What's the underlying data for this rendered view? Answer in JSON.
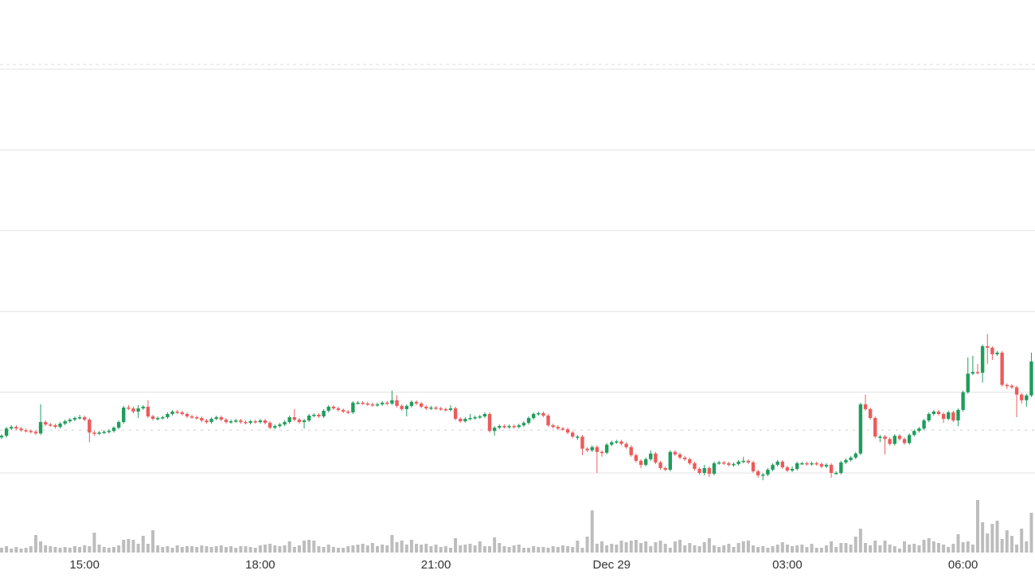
{
  "chart_data": {
    "type": "candlestick",
    "title": "",
    "xlabel": "",
    "ylabel": "",
    "interval": "5m",
    "y_gridlines": [
      0,
      10,
      20,
      30,
      40,
      50
    ],
    "reference_line": 5.3,
    "grid": true,
    "colors": {
      "up": "#1f9d5b",
      "down": "#ec5b5b",
      "volume": "#bdbdbd",
      "grid": "#e3e3e3",
      "reference": "#cfcfcf"
    },
    "x_ticks": [
      {
        "label": "15:00",
        "at_candle": 17
      },
      {
        "label": "18:00",
        "at_candle": 53
      },
      {
        "label": "21:00",
        "at_candle": 89
      },
      {
        "label": "Dec 29",
        "at_candle": 125
      },
      {
        "label": "03:00",
        "at_candle": 161
      },
      {
        "label": "06:00",
        "at_candle": 197
      }
    ],
    "first_open": 4.4,
    "close": [
      4.6,
      5.5,
      5.7,
      5.5,
      5.3,
      5.2,
      5.1,
      4.9,
      6.3,
      6.0,
      5.9,
      5.7,
      6.1,
      6.4,
      6.6,
      6.8,
      6.9,
      6.6,
      5.0,
      4.9,
      5.0,
      5.1,
      5.2,
      5.6,
      6.3,
      8.1,
      8.0,
      7.6,
      8.0,
      8.2,
      7.0,
      6.7,
      6.8,
      6.9,
      7.3,
      7.6,
      7.5,
      7.3,
      7.0,
      6.9,
      6.8,
      6.5,
      6.3,
      6.7,
      6.9,
      6.6,
      6.3,
      6.4,
      6.5,
      6.3,
      6.2,
      6.4,
      6.3,
      6.5,
      6.2,
      5.6,
      5.8,
      6.0,
      6.3,
      6.9,
      6.6,
      6.3,
      6.5,
      7.1,
      7.2,
      7.0,
      7.7,
      8.2,
      8.0,
      7.8,
      7.6,
      7.5,
      8.7,
      8.7,
      8.6,
      8.5,
      8.4,
      8.5,
      8.7,
      8.6,
      9.0,
      8.3,
      7.9,
      8.3,
      8.8,
      8.6,
      8.2,
      8.0,
      8.1,
      8.0,
      7.9,
      7.8,
      8.0,
      6.7,
      6.4,
      6.7,
      6.8,
      6.9,
      7.0,
      7.3,
      5.2,
      5.6,
      5.8,
      5.7,
      5.8,
      5.7,
      5.9,
      6.2,
      6.8,
      7.3,
      7.4,
      7.1,
      5.9,
      5.7,
      5.5,
      5.4,
      5.0,
      4.5,
      4.5,
      3.0,
      2.8,
      3.2,
      2.6,
      2.5,
      3.5,
      3.8,
      3.9,
      3.6,
      3.2,
      2.2,
      1.5,
      1.0,
      1.7,
      2.4,
      1.3,
      0.6,
      0.4,
      2.6,
      2.3,
      1.9,
      1.7,
      1.2,
      0.5,
      0.0,
      0.6,
      -0.1,
      1.2,
      1.3,
      1.2,
      1.0,
      1.1,
      1.4,
      1.5,
      1.3,
      0.2,
      -0.3,
      -0.2,
      0.4,
      1.0,
      1.4,
      0.7,
      0.3,
      0.5,
      1.2,
      1.2,
      1.1,
      1.2,
      1.1,
      0.8,
      1.0,
      0.0,
      0.0,
      1.3,
      1.6,
      1.9,
      2.4,
      8.5,
      7.9,
      6.8,
      4.5,
      4.5,
      4.2,
      3.6,
      4.6,
      4.2,
      3.7,
      4.7,
      5.2,
      5.5,
      6.5,
      7.3,
      7.6,
      7.3,
      6.7,
      7.5,
      6.5,
      7.8,
      10.0,
      12.3,
      12.5,
      12.4,
      15.7,
      15.5,
      14.7,
      14.9,
      10.9,
      10.8,
      10.6,
      9.7,
      9.0,
      9.6,
      13.8
    ],
    "high": [
      4.8,
      5.7,
      5.9,
      5.9,
      5.7,
      5.5,
      5.4,
      5.3,
      8.5,
      6.5,
      6.2,
      6.1,
      6.3,
      6.6,
      6.8,
      7.0,
      7.2,
      7.1,
      6.8,
      5.2,
      5.2,
      5.3,
      5.4,
      5.8,
      6.5,
      8.3,
      8.4,
      8.2,
      8.4,
      8.4,
      9.0,
      7.2,
      7.0,
      7.1,
      7.5,
      7.8,
      7.8,
      7.7,
      7.5,
      7.2,
      7.1,
      7.0,
      6.7,
      6.9,
      7.1,
      7.1,
      6.8,
      6.6,
      6.7,
      6.7,
      6.5,
      6.6,
      6.6,
      6.7,
      6.7,
      6.4,
      6.0,
      6.2,
      6.5,
      7.1,
      7.9,
      6.8,
      6.7,
      7.3,
      7.4,
      7.4,
      7.9,
      8.4,
      8.4,
      8.2,
      8.0,
      7.8,
      8.9,
      8.9,
      8.9,
      8.8,
      8.7,
      8.7,
      8.9,
      8.9,
      10.2,
      9.6,
      8.5,
      8.5,
      9.0,
      9.0,
      8.8,
      8.4,
      8.3,
      8.3,
      8.2,
      8.1,
      8.4,
      8.2,
      6.9,
      6.9,
      7.3,
      7.1,
      7.2,
      7.5,
      7.5,
      5.8,
      6.0,
      6.0,
      6.0,
      6.0,
      6.1,
      6.4,
      7.0,
      7.5,
      7.6,
      7.6,
      7.3,
      6.1,
      5.9,
      5.7,
      5.6,
      5.2,
      4.7,
      4.7,
      3.2,
      3.4,
      3.4,
      2.8,
      3.7,
      4.0,
      4.1,
      4.1,
      3.8,
      3.4,
      2.4,
      1.7,
      1.9,
      2.8,
      2.6,
      1.5,
      0.8,
      2.8,
      2.8,
      2.5,
      2.1,
      1.9,
      1.4,
      0.7,
      1.0,
      0.8,
      1.4,
      1.5,
      1.5,
      1.4,
      1.3,
      1.6,
      2.0,
      1.7,
      1.5,
      0.4,
      0.0,
      0.6,
      1.2,
      1.6,
      1.6,
      0.9,
      0.8,
      1.4,
      1.4,
      1.4,
      1.4,
      1.4,
      1.3,
      1.2,
      1.2,
      0.2,
      1.5,
      1.8,
      2.1,
      2.6,
      8.7,
      9.7,
      8.1,
      7.0,
      4.7,
      4.7,
      4.4,
      4.8,
      4.8,
      4.4,
      4.9,
      5.4,
      5.7,
      6.7,
      7.5,
      7.8,
      7.8,
      7.5,
      7.7,
      7.7,
      8.0,
      10.2,
      14.3,
      14.5,
      13.5,
      15.9,
      17.2,
      15.7,
      15.1,
      15.1,
      11.1,
      11.0,
      10.8,
      9.9,
      9.8,
      14.9
    ],
    "low": [
      4.2,
      4.4,
      5.3,
      5.3,
      5.1,
      5.0,
      4.9,
      4.7,
      4.7,
      5.8,
      5.7,
      5.5,
      5.5,
      5.9,
      6.2,
      6.4,
      6.6,
      6.4,
      3.8,
      4.6,
      4.7,
      4.8,
      4.9,
      5.0,
      5.4,
      6.1,
      7.8,
      7.4,
      6.8,
      7.8,
      6.8,
      6.5,
      6.5,
      6.6,
      6.7,
      7.1,
      7.3,
      7.1,
      6.8,
      6.7,
      6.6,
      6.3,
      6.1,
      6.1,
      6.5,
      6.4,
      6.1,
      6.1,
      6.2,
      6.1,
      6.0,
      6.0,
      6.1,
      6.1,
      6.0,
      5.4,
      5.4,
      5.6,
      5.8,
      6.1,
      6.4,
      6.1,
      5.5,
      6.3,
      6.9,
      6.8,
      6.8,
      7.5,
      7.8,
      7.6,
      7.4,
      7.3,
      7.3,
      8.5,
      8.4,
      8.3,
      8.2,
      8.2,
      8.3,
      8.4,
      8.4,
      8.1,
      7.7,
      7.0,
      8.1,
      8.4,
      8.0,
      7.8,
      7.8,
      7.8,
      7.7,
      7.6,
      7.6,
      6.5,
      6.2,
      6.2,
      6.5,
      6.6,
      6.7,
      6.8,
      5.0,
      4.6,
      5.4,
      5.5,
      5.5,
      5.5,
      5.5,
      5.7,
      6.0,
      6.6,
      7.1,
      6.9,
      5.7,
      5.5,
      5.3,
      5.2,
      4.8,
      4.3,
      4.1,
      2.2,
      2.6,
      2.6,
      0.0,
      2.0,
      2.3,
      3.3,
      3.6,
      3.4,
      3.0,
      2.0,
      1.3,
      0.6,
      0.8,
      1.5,
      1.1,
      0.4,
      0.2,
      0.2,
      2.1,
      1.7,
      1.5,
      1.0,
      0.3,
      -0.2,
      -0.3,
      -0.5,
      -0.3,
      1.0,
      1.0,
      0.8,
      0.8,
      0.9,
      1.2,
      1.1,
      0.0,
      -0.6,
      -0.9,
      -0.4,
      0.2,
      0.8,
      0.5,
      0.1,
      0.1,
      0.3,
      1.0,
      0.9,
      0.9,
      0.9,
      0.6,
      0.6,
      -0.6,
      -0.2,
      -0.2,
      1.1,
      1.4,
      1.7,
      2.2,
      7.7,
      6.6,
      4.3,
      3.8,
      2.3,
      3.4,
      3.4,
      4.0,
      3.5,
      3.5,
      4.5,
      5.0,
      5.3,
      6.3,
      7.1,
      7.1,
      6.2,
      6.5,
      6.3,
      5.8,
      7.6,
      9.8,
      12.1,
      12.2,
      11.2,
      13.5,
      14.0,
      14.5,
      10.7,
      10.4,
      10.4,
      6.9,
      8.6,
      8.2,
      9.4
    ],
    "volume": [
      6,
      8,
      5,
      7,
      5,
      6,
      8,
      22,
      14,
      9,
      8,
      7,
      6,
      7,
      6,
      8,
      7,
      9,
      8,
      25,
      10,
      7,
      6,
      7,
      9,
      16,
      17,
      16,
      11,
      21,
      11,
      28,
      9,
      7,
      8,
      6,
      9,
      7,
      8,
      8,
      7,
      9,
      8,
      7,
      8,
      9,
      7,
      8,
      6,
      8,
      8,
      7,
      6,
      9,
      10,
      11,
      9,
      8,
      9,
      14,
      7,
      9,
      15,
      16,
      15,
      8,
      7,
      10,
      7,
      6,
      6,
      8,
      9,
      10,
      11,
      9,
      12,
      8,
      10,
      9,
      22,
      13,
      15,
      10,
      16,
      11,
      10,
      11,
      8,
      10,
      7,
      8,
      6,
      18,
      9,
      10,
      11,
      9,
      14,
      8,
      8,
      19,
      12,
      8,
      7,
      9,
      10,
      6,
      6,
      8,
      7,
      7,
      6,
      8,
      7,
      9,
      8,
      7,
      15,
      6,
      20,
      53,
      11,
      14,
      9,
      11,
      10,
      15,
      13,
      15,
      16,
      12,
      14,
      8,
      13,
      15,
      11,
      6,
      14,
      16,
      9,
      12,
      9,
      8,
      13,
      18,
      9,
      7,
      9,
      11,
      7,
      12,
      14,
      15,
      9,
      7,
      8,
      6,
      8,
      10,
      13,
      10,
      8,
      9,
      10,
      7,
      11,
      6,
      6,
      9,
      14,
      7,
      12,
      12,
      10,
      20,
      30,
      12,
      9,
      15,
      9,
      15,
      10,
      8,
      5,
      14,
      10,
      11,
      9,
      16,
      18,
      14,
      12,
      10,
      7,
      11,
      23,
      13,
      14,
      10,
      66,
      38,
      24,
      36,
      40,
      17,
      28,
      21,
      10,
      30,
      14,
      50
    ]
  }
}
